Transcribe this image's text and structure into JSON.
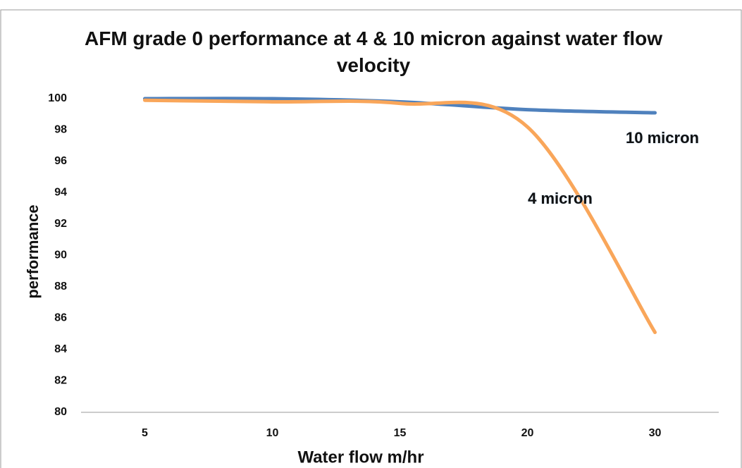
{
  "chart_data": {
    "type": "line",
    "title": "AFM grade 0 performance at 4 & 10 micron against water flow velocity",
    "x_label": "Water flow m/hr",
    "y_label": "performance",
    "categories": [
      "5",
      "10",
      "15",
      "20",
      "30"
    ],
    "series": [
      {
        "name": "10 micron",
        "color": "#4f81bd",
        "values": [
          100,
          100,
          99.8,
          99.3,
          99.1
        ]
      },
      {
        "name": "4 micron",
        "color": "#f9a65a",
        "values": [
          99.9,
          99.8,
          99.7,
          98.2,
          85.1
        ]
      }
    ],
    "ylim": [
      80,
      100
    ],
    "yticks": [
      80,
      82,
      84,
      86,
      88,
      90,
      92,
      94,
      96,
      98,
      100
    ],
    "grid": false
  }
}
